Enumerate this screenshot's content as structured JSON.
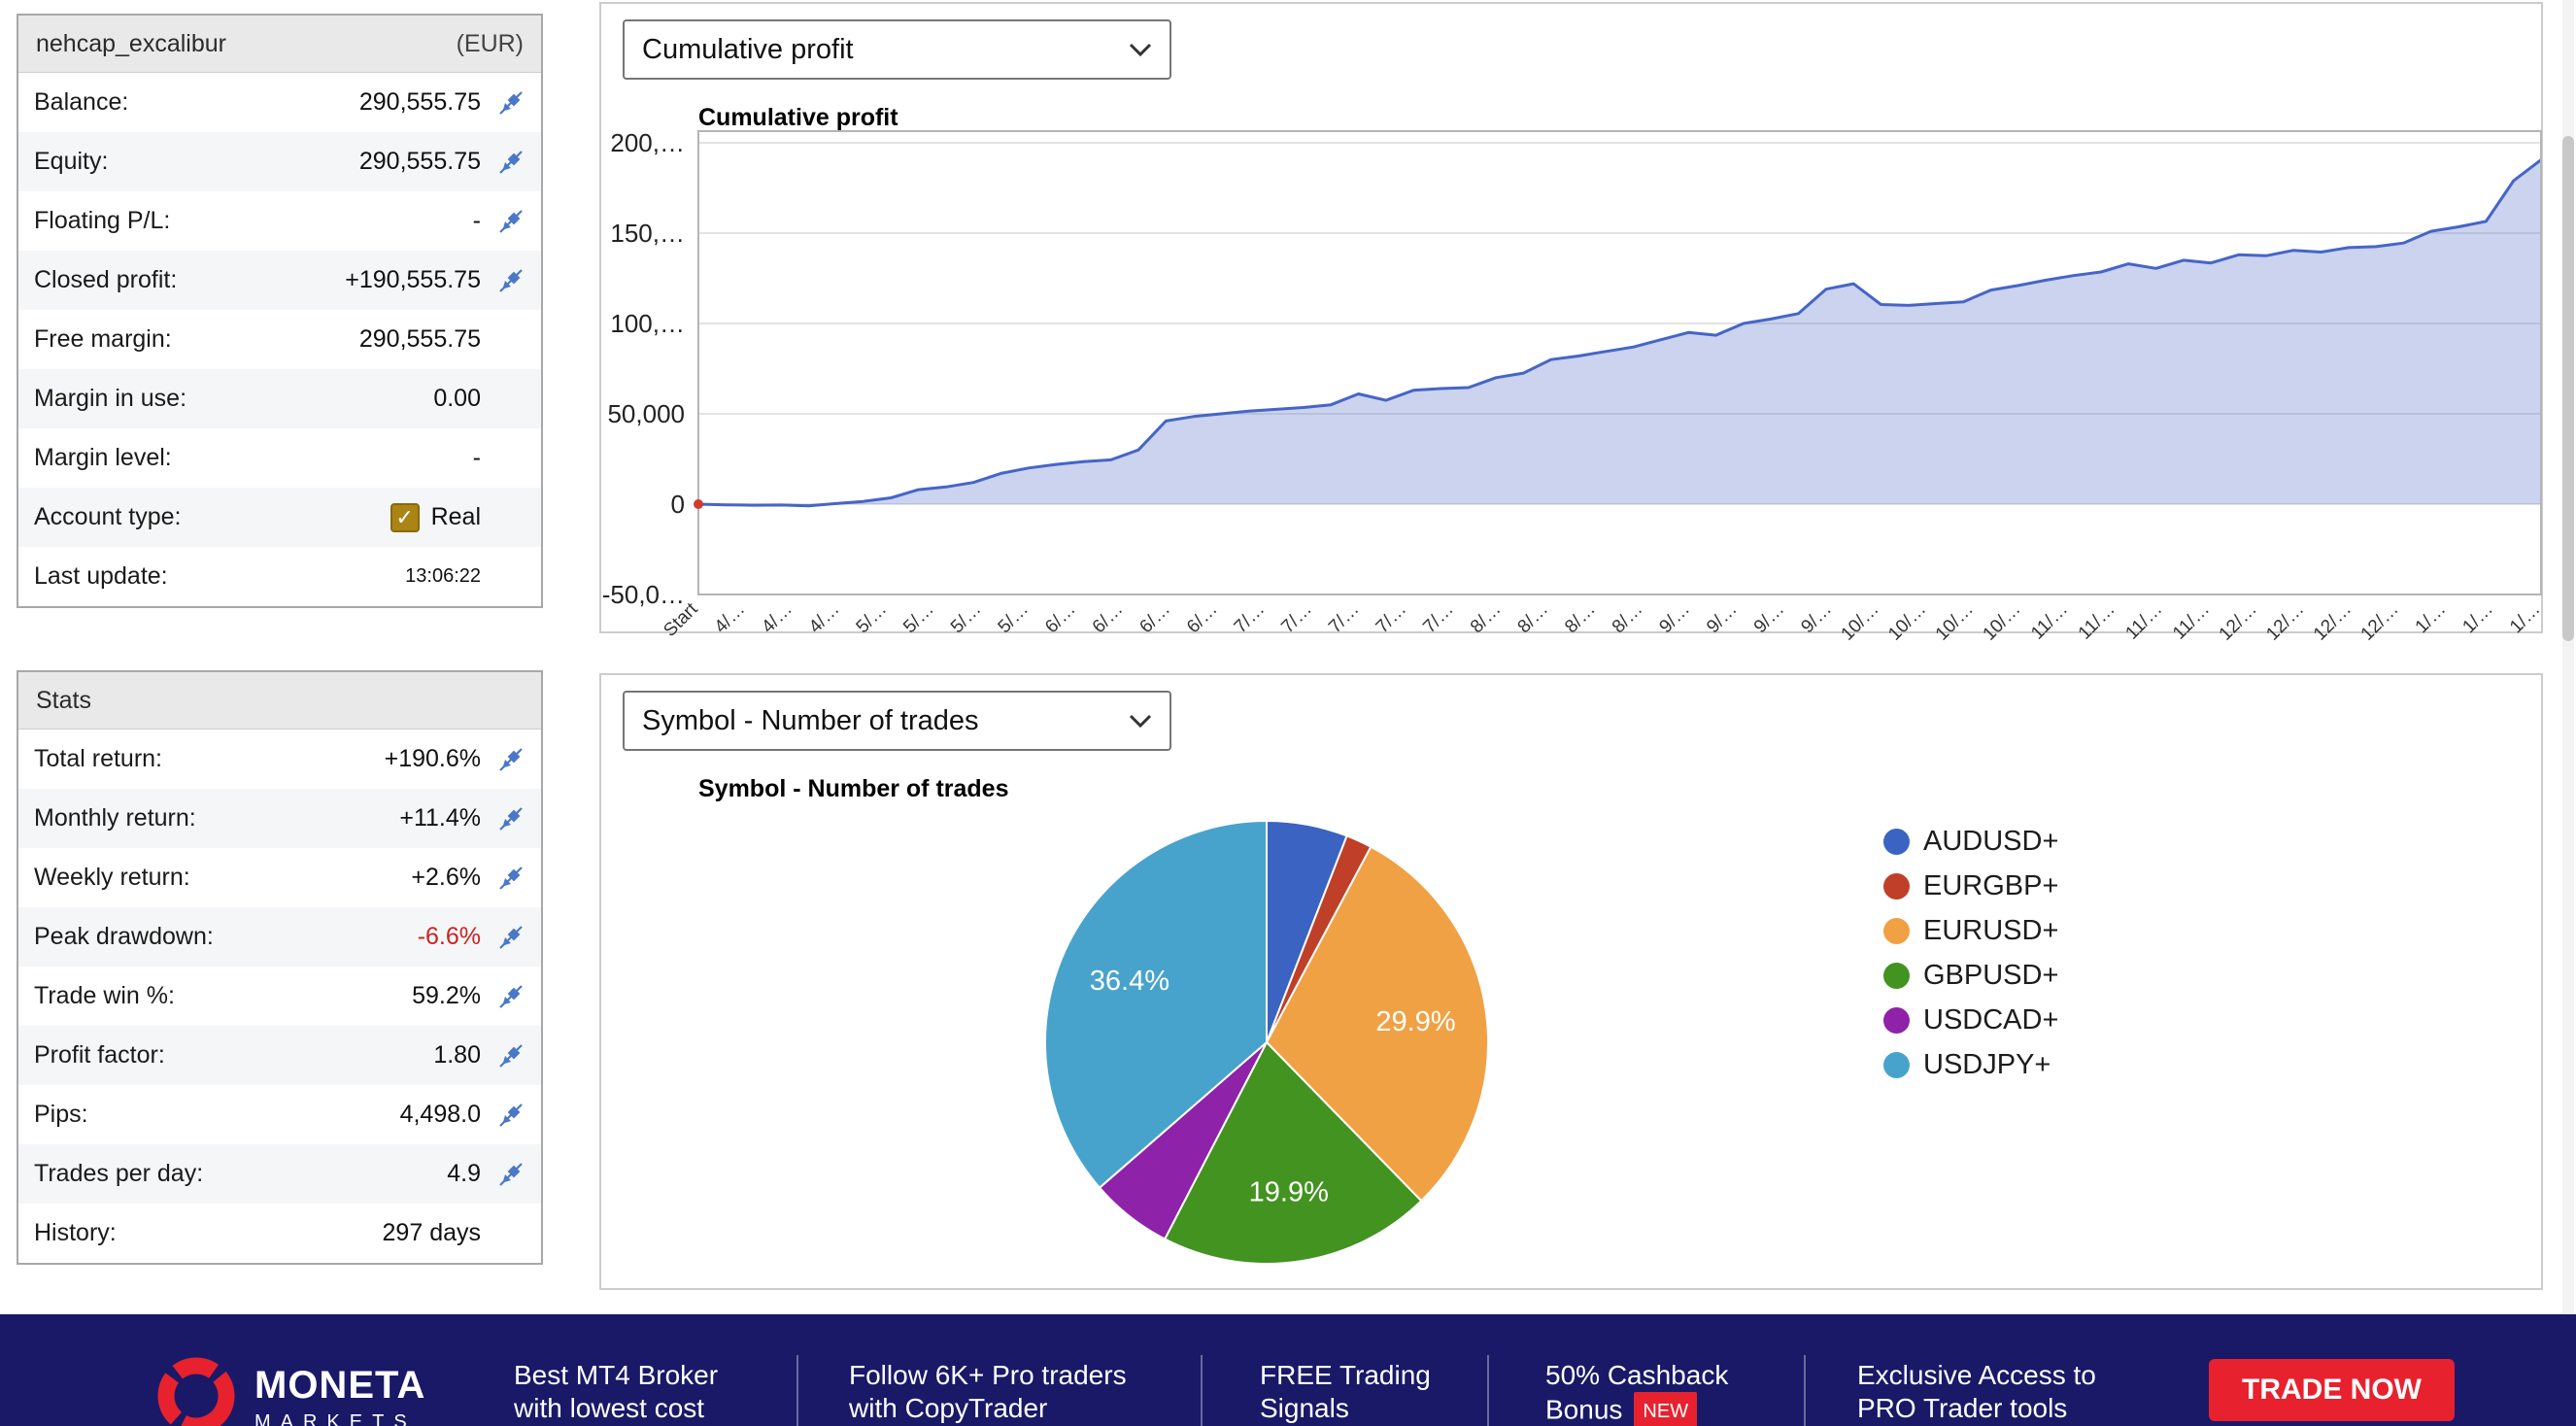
{
  "account": {
    "name": "nehcap_excalibur",
    "currency": "(EUR)",
    "rows": [
      {
        "label": "Balance:",
        "value": "290,555.75",
        "icon": true
      },
      {
        "label": "Equity:",
        "value": "290,555.75",
        "icon": true
      },
      {
        "label": "Floating P/L:",
        "value": "-",
        "icon": true
      },
      {
        "label": "Closed profit:",
        "value": "+190,555.75",
        "icon": true
      },
      {
        "label": "Free margin:",
        "value": "290,555.75",
        "icon": false
      },
      {
        "label": "Margin in use:",
        "value": "0.00",
        "icon": false
      },
      {
        "label": "Margin level:",
        "value": "-",
        "icon": false
      },
      {
        "label": "Account type:",
        "value": "Real",
        "icon": false,
        "checkbox": true
      },
      {
        "label": "Last update:",
        "value": "13:06:22",
        "icon": false,
        "small": true
      }
    ]
  },
  "stats": {
    "title": "Stats",
    "rows": [
      {
        "label": "Total return:",
        "value": "+190.6%",
        "icon": true
      },
      {
        "label": "Monthly return:",
        "value": "+11.4%",
        "icon": true
      },
      {
        "label": "Weekly return:",
        "value": "+2.6%",
        "icon": true
      },
      {
        "label": "Peak drawdown:",
        "value": "-6.6%",
        "icon": true,
        "negative": true
      },
      {
        "label": "Trade win %:",
        "value": "59.2%",
        "icon": true
      },
      {
        "label": "Profit factor:",
        "value": "1.80",
        "icon": true
      },
      {
        "label": "Pips:",
        "value": "4,498.0",
        "icon": true
      },
      {
        "label": "Trades per day:",
        "value": "4.9",
        "icon": true
      },
      {
        "label": "History:",
        "value": "297 days",
        "icon": false
      }
    ]
  },
  "charts": {
    "profit_select": "Cumulative profit",
    "symbol_select": "Symbol - Number of trades"
  },
  "chart_data": [
    {
      "type": "area",
      "title": "Cumulative profit",
      "series_name": "Cumulative profit",
      "ylim": [
        -50000,
        200000
      ],
      "grid": true,
      "line_color": "#4565c8",
      "fill_color": "rgba(105,130,210,0.35)",
      "start_marker_color": "#cf3b2f",
      "yticks": [
        {
          "value": 200000,
          "label": "200,…"
        },
        {
          "value": 150000,
          "label": "150,…"
        },
        {
          "value": 100000,
          "label": "100,…"
        },
        {
          "value": 50000,
          "label": "50,000"
        },
        {
          "value": 0,
          "label": "0"
        },
        {
          "value": -50000,
          "label": "-50,0…"
        }
      ],
      "xtick_labels": [
        "Start",
        "4/…",
        "4/…",
        "4/…",
        "5/…",
        "5/…",
        "5/…",
        "5/…",
        "6/…",
        "6/…",
        "6/…",
        "6/…",
        "7/…",
        "7/…",
        "7/…",
        "7/…",
        "7/…",
        "8/…",
        "8/…",
        "8/…",
        "8/…",
        "9/…",
        "9/…",
        "9/…",
        "9/…",
        "10/…",
        "10/…",
        "10/…",
        "10/…",
        "11/…",
        "11/…",
        "11/…",
        "11/…",
        "12/…",
        "12/…",
        "12/…",
        "12/…",
        "1/…",
        "1/…",
        "1/…"
      ],
      "values": [
        0,
        -400,
        -600,
        -500,
        -900,
        300,
        1500,
        3500,
        8000,
        9500,
        12000,
        17000,
        20000,
        22000,
        23500,
        24500,
        30000,
        46000,
        48500,
        50000,
        51500,
        52500,
        53500,
        55000,
        61000,
        57500,
        63000,
        64000,
        64500,
        70000,
        72500,
        80000,
        82000,
        84500,
        87000,
        91000,
        95000,
        93500,
        100000,
        102500,
        105500,
        119000,
        122000,
        110500,
        110000,
        111000,
        112000,
        118500,
        121000,
        124000,
        126500,
        128500,
        133000,
        130500,
        135000,
        133500,
        138000,
        137500,
        140500,
        139500,
        142000,
        142500,
        144500,
        151000,
        153500,
        156500,
        179000,
        190556
      ]
    },
    {
      "type": "pie",
      "title": "Symbol - Number of trades",
      "legend_position": "right",
      "slices": [
        {
          "label": "AUDUSD+",
          "value": 5.9,
          "color": "#3a63c2"
        },
        {
          "label": "EURGBP+",
          "value": 1.9,
          "color": "#bf3f28"
        },
        {
          "label": "EURUSD+",
          "value": 29.9,
          "color": "#f0a144",
          "pct_label": "29.9%"
        },
        {
          "label": "GBPUSD+",
          "value": 19.9,
          "color": "#429320",
          "pct_label": "19.9%"
        },
        {
          "label": "USDCAD+",
          "value": 6.0,
          "color": "#8e22a8"
        },
        {
          "label": "USDJPY+",
          "value": 36.4,
          "color": "#48a3cc",
          "pct_label": "36.4%"
        }
      ]
    }
  ],
  "footer": {
    "brand": {
      "name": "MONETA",
      "sub": "MARKETS"
    },
    "items": [
      {
        "line1": "Best MT4 Broker",
        "line2": "with lowest cost"
      },
      {
        "line1": "Follow 6K+ Pro traders",
        "line2": "with CopyTrader"
      },
      {
        "line1": "FREE Trading",
        "line2": "Signals"
      },
      {
        "line1": "50% Cashback",
        "line2": "Bonus",
        "badge": "NEW"
      },
      {
        "line1": "Exclusive Access to",
        "line2": "PRO Trader tools"
      }
    ],
    "cta": "TRADE NOW",
    "accent_color": "#e8212e",
    "background_color": "#191968"
  }
}
